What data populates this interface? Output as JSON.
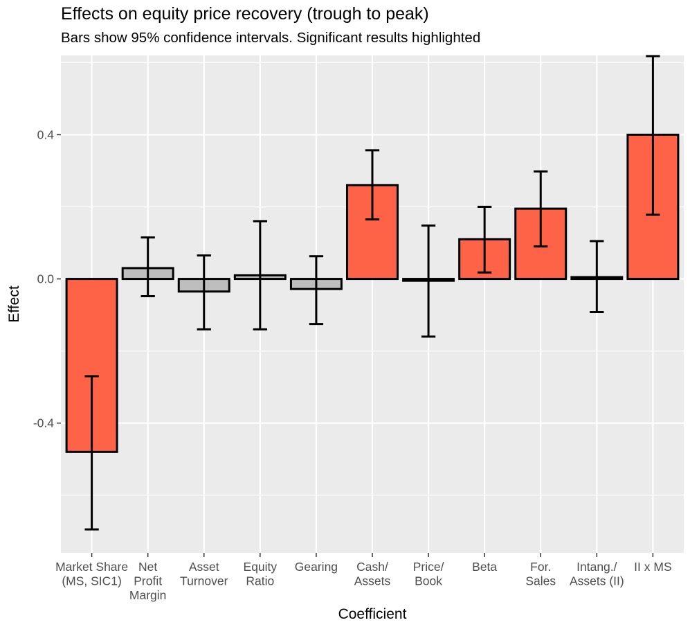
{
  "chart_data": {
    "type": "bar",
    "title": "Effects on equity price recovery (trough to peak)",
    "subtitle": "Bars show 95% confidence intervals. Significant results highlighted",
    "xlabel": "Coefficient",
    "ylabel": "Effect",
    "ylim": [
      -0.76,
      0.62
    ],
    "yticks": [
      -0.4,
      0.0,
      0.4
    ],
    "ytick_labels": [
      "-0.4",
      "0.0",
      "0.4"
    ],
    "grid": true,
    "legend": "none",
    "categories": [
      "Market Share\n(MS, SIC1)",
      "Net\nProfit\nMargin",
      "Asset\nTurnover",
      "Equity\nRatio",
      "Gearing",
      "Cash/\nAssets",
      "Price/\nBook",
      "Beta",
      "For.\nSales",
      "Intang./\nAssets (II)",
      "II x MS"
    ],
    "values": [
      -0.48,
      0.03,
      -0.035,
      0.01,
      -0.028,
      0.26,
      -0.005,
      0.11,
      0.195,
      0.005,
      0.4
    ],
    "ci_lower": [
      -0.695,
      -0.048,
      -0.14,
      -0.14,
      -0.125,
      0.165,
      -0.16,
      0.018,
      0.09,
      -0.092,
      0.178
    ],
    "ci_upper": [
      -0.27,
      0.115,
      0.065,
      0.16,
      0.063,
      0.357,
      0.148,
      0.2,
      0.298,
      0.105,
      0.618
    ],
    "significant": [
      true,
      false,
      false,
      false,
      false,
      true,
      false,
      true,
      true,
      false,
      true
    ],
    "colors": {
      "significant": "#ff6347",
      "not_significant": "#bebebe",
      "panel_background": "#ebebeb",
      "grid": "#ffffff",
      "outline": "#000000"
    }
  }
}
